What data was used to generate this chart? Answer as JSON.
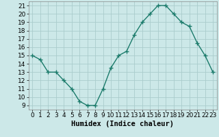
{
  "x": [
    0,
    1,
    2,
    3,
    4,
    5,
    6,
    7,
    8,
    9,
    10,
    11,
    12,
    13,
    14,
    15,
    16,
    17,
    18,
    19,
    20,
    21,
    22,
    23
  ],
  "y": [
    15,
    14.5,
    13,
    13,
    12,
    11,
    9.5,
    9,
    9,
    11,
    13.5,
    15,
    15.5,
    17.5,
    19,
    20,
    21,
    21,
    20,
    19,
    18.5,
    16.5,
    15,
    13
  ],
  "line_color": "#1a7a6a",
  "marker": "+",
  "marker_size": 4,
  "marker_color": "#1a7a6a",
  "bg_color": "#cce8e8",
  "grid_color": "#aacccc",
  "xlabel": "Humidex (Indice chaleur)",
  "ylim": [
    8.5,
    21.5
  ],
  "xlim": [
    -0.5,
    23.5
  ],
  "yticks": [
    9,
    10,
    11,
    12,
    13,
    14,
    15,
    16,
    17,
    18,
    19,
    20,
    21
  ],
  "xticks": [
    0,
    1,
    2,
    3,
    4,
    5,
    6,
    7,
    8,
    9,
    10,
    11,
    12,
    13,
    14,
    15,
    16,
    17,
    18,
    19,
    20,
    21,
    22,
    23
  ],
  "tick_label_fontsize": 6.5,
  "xlabel_fontsize": 7.5,
  "line_width": 1.0
}
